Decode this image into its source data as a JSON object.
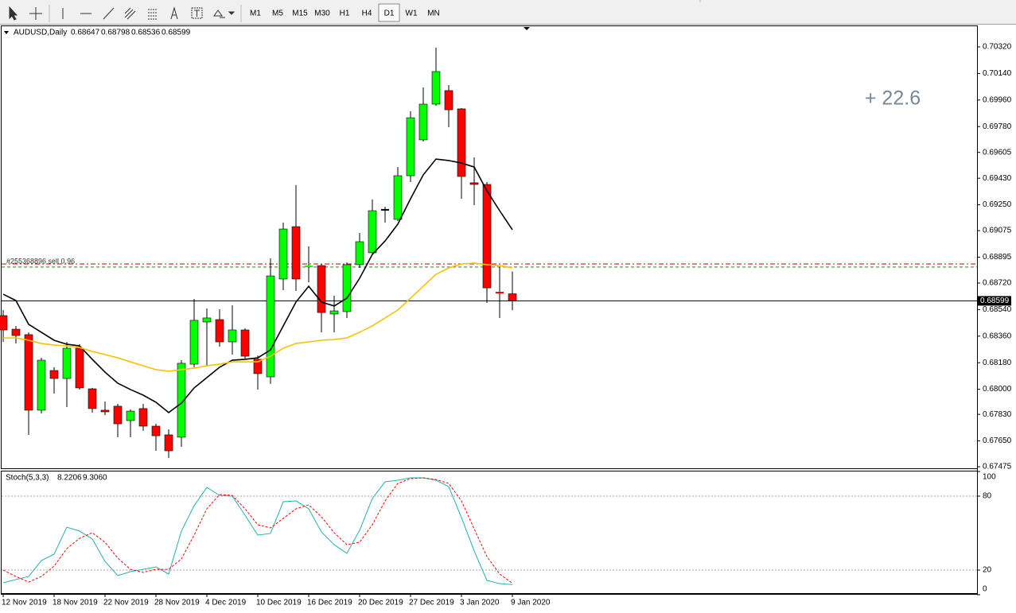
{
  "toolbar": {
    "timeframes": [
      "M1",
      "M5",
      "M15",
      "M30",
      "H1",
      "H4",
      "D1",
      "W1",
      "MN"
    ],
    "active": "D1"
  },
  "chart_data": {
    "type": "candlestick",
    "title": "AUDUSD,Daily",
    "categories": [
      "12 Nov 2019",
      null,
      null,
      null,
      "18 Nov 2019",
      null,
      null,
      null,
      "22 Nov 2019",
      null,
      null,
      null,
      "28 Nov 2019",
      null,
      null,
      null,
      "4 Dec 2019",
      null,
      null,
      null,
      "10 Dec 2019",
      null,
      null,
      null,
      "16 Dec 2019",
      null,
      null,
      null,
      "20 Dec 2019",
      null,
      null,
      null,
      "27 Dec 2019",
      null,
      null,
      null,
      "3 Jan 2020",
      null,
      null,
      null,
      "9 Jan 2020"
    ],
    "open": [
      0.68499,
      0.68407,
      0.6837,
      0.67858,
      0.68127,
      0.68073,
      0.68278,
      0.68003,
      0.67858,
      0.67885,
      0.67788,
      0.67869,
      0.6775,
      0.67691,
      0.67675,
      0.6817,
      0.68456,
      0.68472,
      0.68321,
      0.68402,
      0.68203,
      0.68084,
      0.68747,
      0.69102,
      0.68833,
      0.68838,
      0.6851,
      0.68526,
      0.68844,
      0.68925,
      0.69216,
      0.69151,
      0.69447,
      0.6969,
      0.69932,
      0.70024,
      0.699,
      0.69399,
      0.69388,
      0.68655,
      0.68647
    ],
    "high": [
      0.68537,
      0.68429,
      0.68386,
      0.68213,
      0.68149,
      0.68321,
      0.68305,
      0.68009,
      0.67917,
      0.67901,
      0.67863,
      0.67901,
      0.67766,
      0.67728,
      0.68197,
      0.68612,
      0.68547,
      0.68542,
      0.68569,
      0.68413,
      0.68229,
      0.68887,
      0.69129,
      0.69383,
      0.68968,
      0.68849,
      0.68634,
      0.6886,
      0.69059,
      0.69286,
      0.69237,
      0.69506,
      0.69884,
      0.70045,
      0.70315,
      0.70061,
      0.69905,
      0.69571,
      0.69404,
      0.68828,
      0.68798
    ],
    "low": [
      0.68321,
      0.6831,
      0.67691,
      0.67836,
      0.67971,
      0.67879,
      0.67998,
      0.67842,
      0.67825,
      0.67675,
      0.67675,
      0.67718,
      0.67583,
      0.67534,
      0.6761,
      0.68149,
      0.68159,
      0.68289,
      0.68235,
      0.68208,
      0.67998,
      0.68036,
      0.68671,
      0.68666,
      0.68725,
      0.68386,
      0.68386,
      0.68483,
      0.68822,
      0.68914,
      0.69129,
      0.6914,
      0.69404,
      0.69679,
      0.69921,
      0.69776,
      0.69291,
      0.69248,
      0.68585,
      0.68483,
      0.68536
    ],
    "close": [
      0.68402,
      0.68364,
      0.67858,
      0.68197,
      0.68073,
      0.68278,
      0.68009,
      0.67869,
      0.67847,
      0.67766,
      0.67852,
      0.6775,
      0.67685,
      0.67583,
      0.68176,
      0.68467,
      0.68483,
      0.68321,
      0.68402,
      0.68224,
      0.68106,
      0.68768,
      0.69086,
      0.68747,
      0.68838,
      0.6852,
      0.68531,
      0.68844,
      0.69,
      0.6921,
      0.69216,
      0.69447,
      0.6984,
      0.69932,
      0.70153,
      0.69894,
      0.69442,
      0.69388,
      0.68687,
      0.6865,
      0.68599
    ],
    "up_color": "#00ff00",
    "down_color": "#ff0000",
    "doji_color": "#000000",
    "overlays": [
      {
        "color": "#000000",
        "values": [
          0.68644,
          0.68601,
          0.6844,
          0.68386,
          0.68332,
          0.68305,
          0.68294,
          0.68203,
          0.68116,
          0.68041,
          0.67998,
          0.6796,
          0.67912,
          0.67842,
          0.67906,
          0.68009,
          0.68079,
          0.68149,
          0.68197,
          0.68203,
          0.68213,
          0.68267,
          0.68429,
          0.68591,
          0.68698,
          0.68591,
          0.68564,
          0.68617,
          0.68752,
          0.68914,
          0.69005,
          0.69119,
          0.69291,
          0.69453,
          0.6956,
          0.6955,
          0.69533,
          0.69506,
          0.69345,
          0.6921,
          0.69081
        ]
      },
      {
        "color": "#f5c400",
        "values": [
          0.68348,
          0.68348,
          0.68332,
          0.6831,
          0.683,
          0.68294,
          0.68283,
          0.68256,
          0.68235,
          0.68213,
          0.68186,
          0.68159,
          0.68133,
          0.68122,
          0.68133,
          0.68143,
          0.68159,
          0.6817,
          0.68186,
          0.68186,
          0.68186,
          0.68224,
          0.68278,
          0.6831,
          0.68321,
          0.68332,
          0.68337,
          0.68348,
          0.68386,
          0.68429,
          0.68483,
          0.68537,
          0.68617,
          0.68698,
          0.68779,
          0.68822,
          0.68849,
          0.68855,
          0.68844,
          0.68838,
          0.68822
        ]
      }
    ],
    "order_lines": [
      {
        "value": 0.68849,
        "color": "#c00000"
      },
      {
        "value": 0.68828,
        "color": "#00a000"
      }
    ],
    "order_label": "#255368896 sell 0.96",
    "annotation": "+ 22.6",
    "ylim": [
      0.67459,
      0.7046
    ],
    "yticks": [
      {
        "value": 0.7032,
        "label": "0.70320"
      },
      {
        "value": 0.7014,
        "label": "0.70140"
      },
      {
        "value": 0.6996,
        "label": "0.69960"
      },
      {
        "value": 0.6978,
        "label": "0.69780"
      },
      {
        "value": 0.69605,
        "label": "0.69605"
      },
      {
        "value": 0.6943,
        "label": "0.69430"
      },
      {
        "value": 0.6925,
        "label": "0.69250"
      },
      {
        "value": 0.69075,
        "label": "0.69075"
      },
      {
        "value": 0.68895,
        "label": "0.68895"
      },
      {
        "value": 0.6872,
        "label": "0.68720"
      },
      {
        "value": 0.6854,
        "label": "0.68540"
      },
      {
        "value": 0.6836,
        "label": "0.68360"
      },
      {
        "value": 0.6818,
        "label": "0.68180"
      },
      {
        "value": 0.68,
        "label": "0.68000"
      },
      {
        "value": 0.6783,
        "label": "0.67830"
      },
      {
        "value": 0.6765,
        "label": "0.67650"
      },
      {
        "value": 0.67475,
        "label": "0.67475"
      }
    ],
    "stochastic": {
      "title": "Stoch(5,3,3)",
      "value_labels": [
        "8.2206",
        "9.3060"
      ],
      "main": {
        "color": "#20b2aa",
        "values": [
          9.7,
          12.3,
          14.8,
          27.7,
          32.9,
          54.8,
          51.6,
          45.2,
          27.1,
          15.5,
          18.7,
          20.6,
          22.6,
          16.8,
          51.6,
          72.3,
          87.1,
          80.6,
          80.0,
          64.5,
          48.4,
          49.7,
          75.5,
          76.1,
          69.7,
          51.0,
          40.6,
          33.5,
          52.3,
          78.1,
          91.6,
          92.9,
          94.8,
          94.8,
          92.9,
          87.7,
          62.6,
          35.5,
          11.6,
          9.0,
          8.2206
        ]
      },
      "signal": {
        "color": "#ff0000",
        "values": [
          20.0,
          14.8,
          10.3,
          14.8,
          23.2,
          37.4,
          45.8,
          50.3,
          42.6,
          29.7,
          20.6,
          18.1,
          20.6,
          20.6,
          29.0,
          48.4,
          69.7,
          81.3,
          80.6,
          69.7,
          56.8,
          54.2,
          61.9,
          69.7,
          72.9,
          63.2,
          50.3,
          40.6,
          42.6,
          56.8,
          76.1,
          90.3,
          94.2,
          94.8,
          93.5,
          90.3,
          76.1,
          53.5,
          31.0,
          16.8,
          9.306
        ]
      },
      "ylim": [
        0,
        100
      ],
      "yticks": [
        0,
        20,
        80,
        100
      ],
      "levels": [
        20,
        80
      ]
    }
  }
}
